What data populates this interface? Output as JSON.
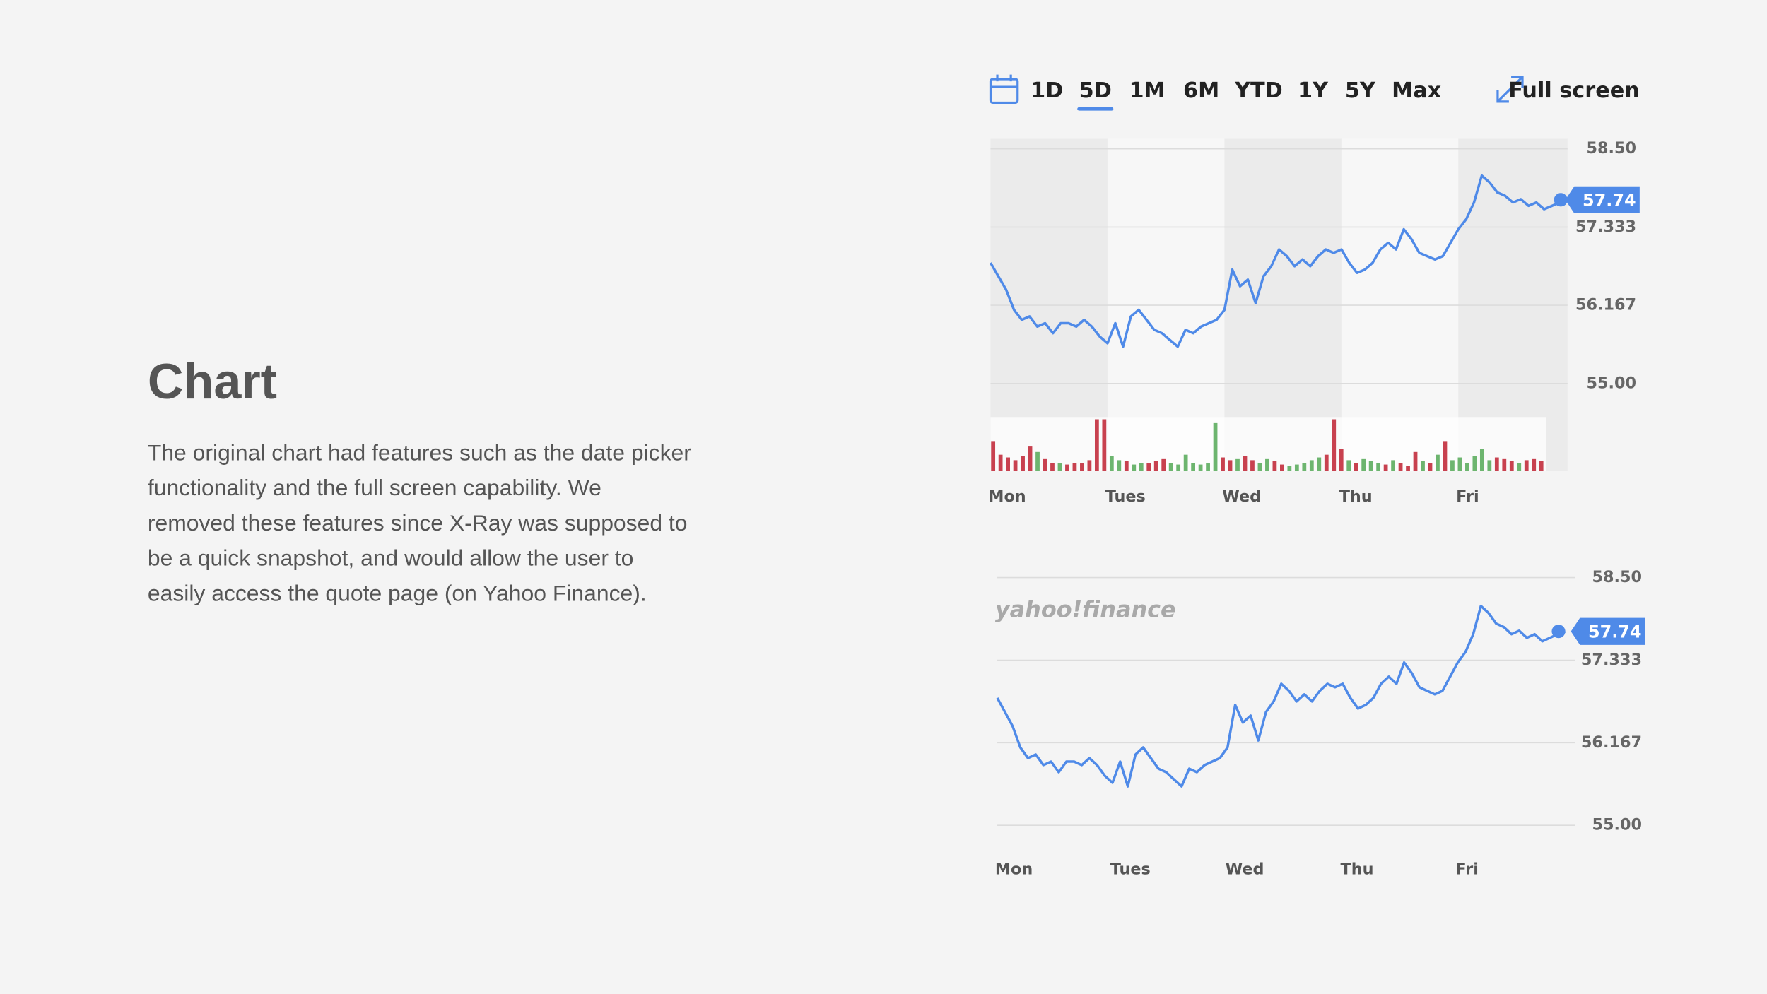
{
  "slide": {
    "title": "Chart",
    "body": [
      "The original chart had features such as the date picker",
      "functionality and the full screen capability. We",
      "removed these features since X-Ray was supposed to",
      "be a quick snapshot, and would allow the user to",
      "easily access the quote page (on Yahoo Finance)."
    ]
  },
  "toolbar": {
    "ranges": [
      "1D",
      "5D",
      "1M",
      "6M",
      "YTD",
      "1Y",
      "5Y",
      "Max"
    ],
    "selected": 1,
    "fullscreen": "Full screen"
  },
  "chart_data": [
    {
      "type": "line",
      "color": "#4f8ae8",
      "bands": true,
      "grid": true,
      "categories": [
        "Mon",
        null,
        null,
        null,
        null,
        null,
        null,
        null,
        null,
        null,
        null,
        null,
        null,
        null,
        null,
        "Tues",
        null,
        null,
        null,
        null,
        null,
        null,
        null,
        null,
        null,
        null,
        null,
        null,
        null,
        null,
        "Wed",
        null,
        null,
        null,
        null,
        null,
        null,
        null,
        null,
        null,
        null,
        null,
        null,
        null,
        null,
        "Thu",
        null,
        null,
        null,
        null,
        null,
        null,
        null,
        null,
        null,
        null,
        null,
        null,
        null,
        null,
        "Fri",
        null,
        null,
        null,
        null,
        null,
        null,
        null,
        null,
        null,
        null,
        null,
        null,
        null,
        null
      ],
      "values": [
        56.8,
        56.6,
        56.4,
        56.1,
        55.95,
        56.0,
        55.85,
        55.9,
        55.75,
        55.9,
        55.9,
        55.85,
        55.95,
        55.85,
        55.7,
        55.6,
        55.9,
        55.55,
        56.0,
        56.1,
        55.95,
        55.8,
        55.75,
        55.65,
        55.55,
        55.8,
        55.75,
        55.85,
        55.9,
        55.95,
        56.1,
        56.7,
        56.45,
        56.55,
        56.2,
        56.6,
        56.75,
        57.0,
        56.9,
        56.75,
        56.85,
        56.75,
        56.9,
        57.0,
        56.95,
        57.0,
        56.8,
        56.65,
        56.7,
        56.8,
        57.0,
        57.1,
        57.0,
        57.3,
        57.15,
        56.95,
        56.9,
        56.85,
        56.9,
        57.1,
        57.3,
        57.45,
        57.7,
        58.1,
        58.0,
        57.85,
        57.8,
        57.7,
        57.75,
        57.65,
        57.7,
        57.6,
        57.65,
        57.7,
        57.74
      ],
      "volume": [
        55,
        30,
        25,
        20,
        28,
        45,
        35,
        22,
        15,
        14,
        12,
        15,
        14,
        20,
        95,
        95,
        28,
        20,
        18,
        12,
        15,
        14,
        18,
        22,
        15,
        12,
        30,
        15,
        12,
        14,
        88,
        25,
        20,
        22,
        28,
        20,
        15,
        22,
        18,
        12,
        10,
        12,
        15,
        20,
        25,
        30,
        95,
        40,
        20,
        15,
        22,
        18,
        15,
        12,
        20,
        15,
        10,
        35,
        18,
        15,
        30,
        55,
        20,
        25,
        15,
        28,
        40,
        20,
        25,
        22,
        18,
        15,
        20,
        22,
        18
      ],
      "volume_colors": [
        "#c8414f",
        "#c8414f",
        "#c8414f",
        "#c8414f",
        "#c8414f",
        "#c8414f",
        "#6db56f",
        "#c8414f",
        "#c8414f",
        "#6db56f",
        "#c8414f",
        "#c8414f",
        "#c8414f",
        "#c8414f",
        "#c8414f",
        "#c8414f",
        "#6db56f",
        "#6db56f",
        "#c8414f",
        "#6db56f",
        "#6db56f",
        "#c8414f",
        "#c8414f",
        "#c8414f",
        "#6db56f",
        "#6db56f",
        "#6db56f",
        "#6db56f",
        "#6db56f",
        "#6db56f",
        "#6db56f",
        "#c8414f",
        "#c8414f",
        "#6db56f",
        "#c8414f",
        "#c8414f",
        "#6db56f",
        "#6db56f",
        "#c8414f",
        "#c8414f",
        "#6db56f",
        "#6db56f",
        "#6db56f",
        "#6db56f",
        "#6db56f",
        "#c8414f",
        "#c8414f",
        "#c8414f",
        "#6db56f",
        "#c8414f",
        "#6db56f",
        "#6db56f",
        "#6db56f",
        "#c8414f",
        "#6db56f",
        "#c8414f",
        "#c8414f",
        "#c8414f",
        "#6db56f",
        "#c8414f",
        "#6db56f",
        "#c8414f",
        "#6db56f",
        "#6db56f",
        "#6db56f",
        "#6db56f",
        "#6db56f",
        "#6db56f",
        "#c8414f",
        "#c8414f",
        "#c8414f",
        "#6db56f",
        "#c8414f",
        "#c8414f",
        "#c8414f"
      ],
      "ylim": [
        54.5,
        58.65
      ],
      "yticks": [
        {
          "value": 58.5,
          "label": "58.50"
        },
        57.333,
        56.167,
        {
          "value": 55,
          "label": "55.00"
        }
      ]
    },
    {
      "type": "line",
      "color": "#4f8ae8",
      "bands": false,
      "grid": true,
      "watermark": "yahoo!finance",
      "categories": [
        "Mon",
        null,
        null,
        null,
        null,
        null,
        null,
        null,
        null,
        null,
        null,
        null,
        null,
        null,
        null,
        "Tues",
        null,
        null,
        null,
        null,
        null,
        null,
        null,
        null,
        null,
        null,
        null,
        null,
        null,
        null,
        "Wed",
        null,
        null,
        null,
        null,
        null,
        null,
        null,
        null,
        null,
        null,
        null,
        null,
        null,
        null,
        "Thu",
        null,
        null,
        null,
        null,
        null,
        null,
        null,
        null,
        null,
        null,
        null,
        null,
        null,
        null,
        "Fri",
        null,
        null,
        null,
        null,
        null,
        null,
        null,
        null,
        null,
        null,
        null,
        null,
        null,
        null
      ],
      "values": [
        56.8,
        56.6,
        56.4,
        56.1,
        55.95,
        56.0,
        55.85,
        55.9,
        55.75,
        55.9,
        55.9,
        55.85,
        55.95,
        55.85,
        55.7,
        55.6,
        55.9,
        55.55,
        56.0,
        56.1,
        55.95,
        55.8,
        55.75,
        55.65,
        55.55,
        55.8,
        55.75,
        55.85,
        55.9,
        55.95,
        56.1,
        56.7,
        56.45,
        56.55,
        56.2,
        56.6,
        56.75,
        57.0,
        56.9,
        56.75,
        56.85,
        56.75,
        56.9,
        57.0,
        56.95,
        57.0,
        56.8,
        56.65,
        56.7,
        56.8,
        57.0,
        57.1,
        57.0,
        57.3,
        57.15,
        56.95,
        56.9,
        56.85,
        56.9,
        57.1,
        57.3,
        57.45,
        57.7,
        58.1,
        58.0,
        57.85,
        57.8,
        57.7,
        57.75,
        57.65,
        57.7,
        57.6,
        57.65,
        57.7,
        57.74
      ],
      "ylim": [
        54.8,
        58.7
      ],
      "yticks": [
        {
          "value": 58.5,
          "label": "58.50"
        },
        57.333,
        56.167,
        {
          "value": 55,
          "label": "55.00"
        }
      ]
    }
  ]
}
